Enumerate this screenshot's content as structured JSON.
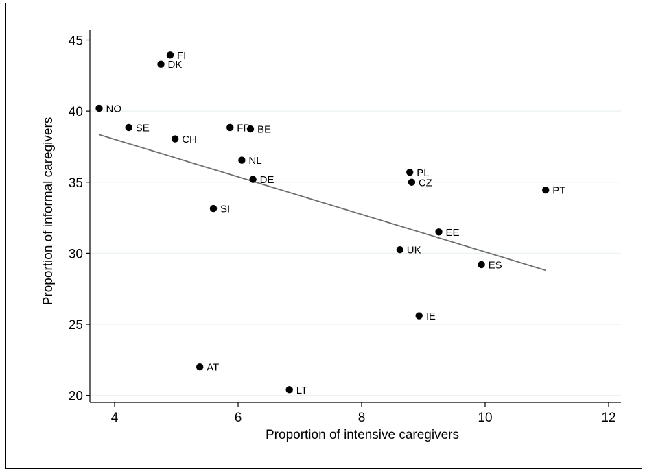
{
  "chart_data": {
    "type": "scatter",
    "title": "",
    "xlabel": "Proportion of intensive caregivers",
    "ylabel": "Proportion of informal caregivers",
    "xlim": [
      3.6,
      12.2
    ],
    "ylim": [
      19.5,
      45.7
    ],
    "xticks": [
      4,
      6,
      8,
      10,
      12
    ],
    "yticks": [
      20,
      25,
      30,
      35,
      40,
      45
    ],
    "grid": true,
    "legend": "none",
    "colors": {
      "points": "#000000",
      "fit_line": "#6e6e6e",
      "grid": "#eaf2f3"
    },
    "points": [
      {
        "label": "FI",
        "x": 4.9,
        "y": 43.95
      },
      {
        "label": "DK",
        "x": 4.75,
        "y": 43.3
      },
      {
        "label": "NO",
        "x": 3.75,
        "y": 40.2
      },
      {
        "label": "SE",
        "x": 4.23,
        "y": 38.85
      },
      {
        "label": "CH",
        "x": 4.98,
        "y": 38.05
      },
      {
        "label": "FR",
        "x": 5.87,
        "y": 38.85
      },
      {
        "label": "BE",
        "x": 6.2,
        "y": 38.75
      },
      {
        "label": "NL",
        "x": 6.06,
        "y": 36.55
      },
      {
        "label": "DE",
        "x": 6.24,
        "y": 35.2
      },
      {
        "label": "SI",
        "x": 5.6,
        "y": 33.15
      },
      {
        "label": "PL",
        "x": 8.78,
        "y": 35.7
      },
      {
        "label": "CZ",
        "x": 8.81,
        "y": 35.0
      },
      {
        "label": "PT",
        "x": 10.98,
        "y": 34.45
      },
      {
        "label": "EE",
        "x": 9.25,
        "y": 31.5
      },
      {
        "label": "UK",
        "x": 8.62,
        "y": 30.25
      },
      {
        "label": "ES",
        "x": 9.94,
        "y": 29.2
      },
      {
        "label": "IE",
        "x": 8.93,
        "y": 25.6
      },
      {
        "label": "AT",
        "x": 5.38,
        "y": 22.0
      },
      {
        "label": "LT",
        "x": 6.83,
        "y": 20.4
      }
    ],
    "fit_line": {
      "x": [
        3.75,
        10.98
      ],
      "y": [
        38.35,
        28.8
      ]
    }
  }
}
